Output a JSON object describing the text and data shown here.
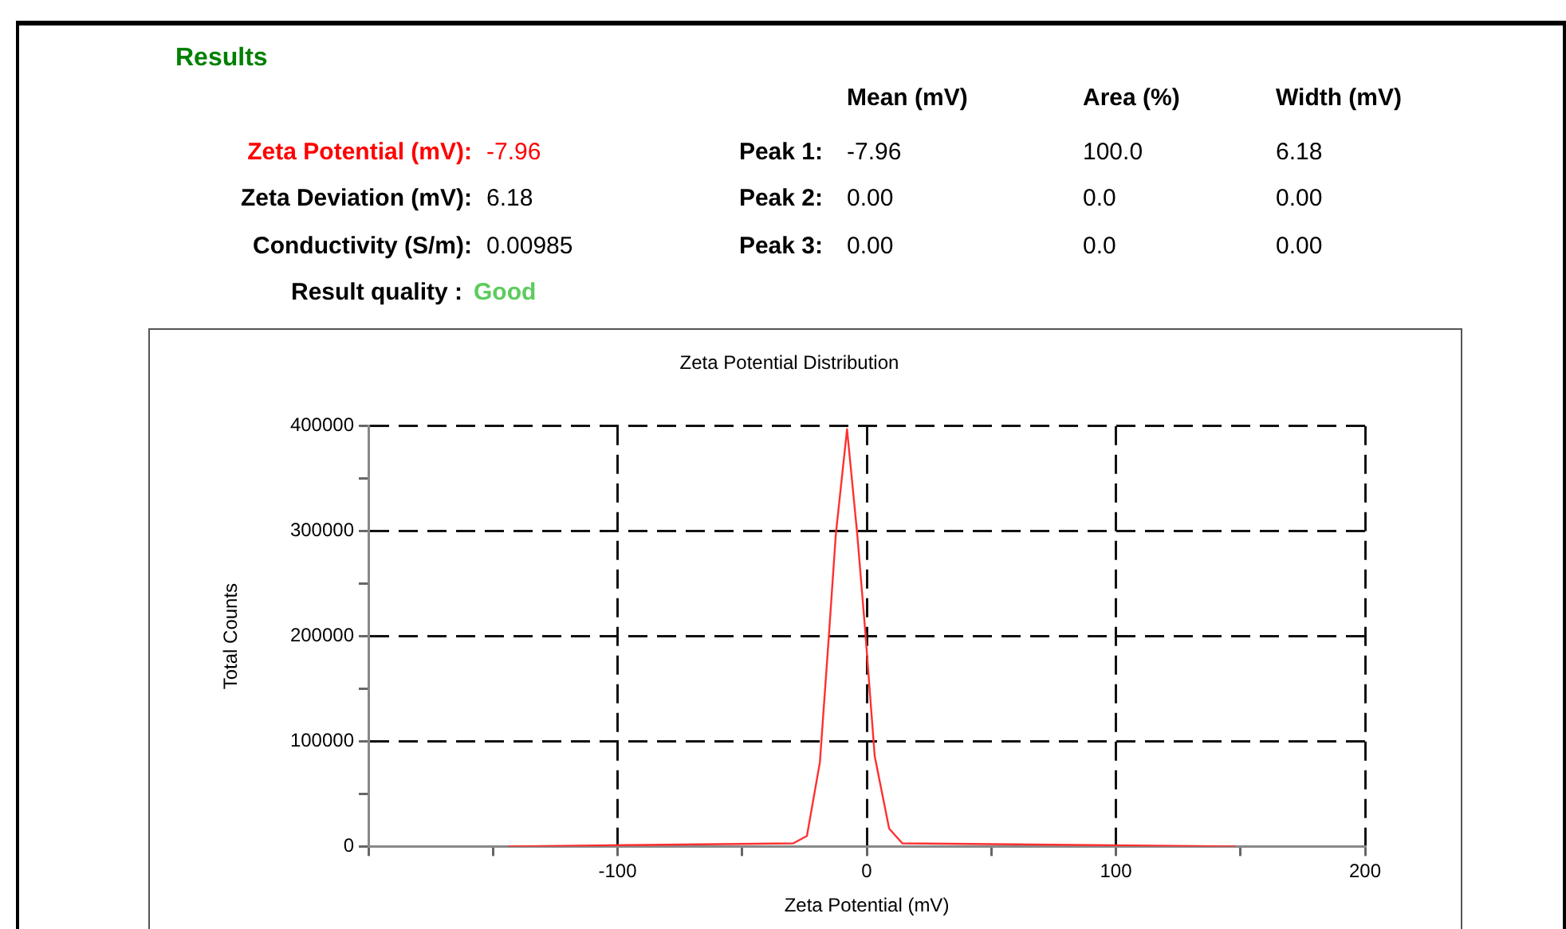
{
  "chart_data": [
    {
      "type": "other",
      "title": "Results",
      "annotations": [
        "Mean (mV)",
        "Area (%)",
        "Width (mV)",
        "Zeta Potential (mV):",
        "-7.96",
        "Peak 1:",
        "-7.96",
        "100.0",
        "6.18",
        "Zeta Deviation (mV):",
        "6.18",
        "Peak 2:",
        "0.00",
        "0.0",
        "0.00",
        "Conductivity (S/m):",
        "0.00985",
        "Peak 3:",
        "0.00",
        "0.0",
        "0.00",
        "Result quality :",
        "Good"
      ]
    },
    {
      "type": "line",
      "title": "Zeta Potential Distribution",
      "xlabel": "Zeta Potential (mV)",
      "ylabel": "Total Counts",
      "xlim": [
        -200,
        200
      ],
      "xticks": [
        {
          "value": -200,
          "label": null
        },
        {
          "value": -150,
          "label": null
        },
        -100,
        {
          "value": -50,
          "label": null
        },
        0,
        {
          "value": 50,
          "label": null
        },
        100,
        {
          "value": 150,
          "label": null
        },
        200
      ],
      "ylim": [
        0,
        400000
      ],
      "yticks": [
        0,
        {
          "value": 50000,
          "label": null
        },
        100000,
        {
          "value": 150000,
          "label": null
        },
        200000,
        {
          "value": 250000,
          "label": null
        },
        300000,
        {
          "value": 350000,
          "label": null
        },
        400000
      ],
      "grid": true,
      "legend": false,
      "marker": "none",
      "line_style": "solid",
      "series": [
        {
          "color": "#ff3030",
          "x": [
            -144,
            -29.5,
            -24,
            -18.8,
            -15.2,
            -12.4,
            -7.9,
            -3.8,
            -0.6,
            3.2,
            9,
            14.3,
            148
          ],
          "values": [
            0,
            3000,
            10000,
            80000,
            200000,
            297000,
            397000,
            297000,
            205000,
            86000,
            17000,
            3000,
            0
          ]
        }
      ]
    }
  ]
}
